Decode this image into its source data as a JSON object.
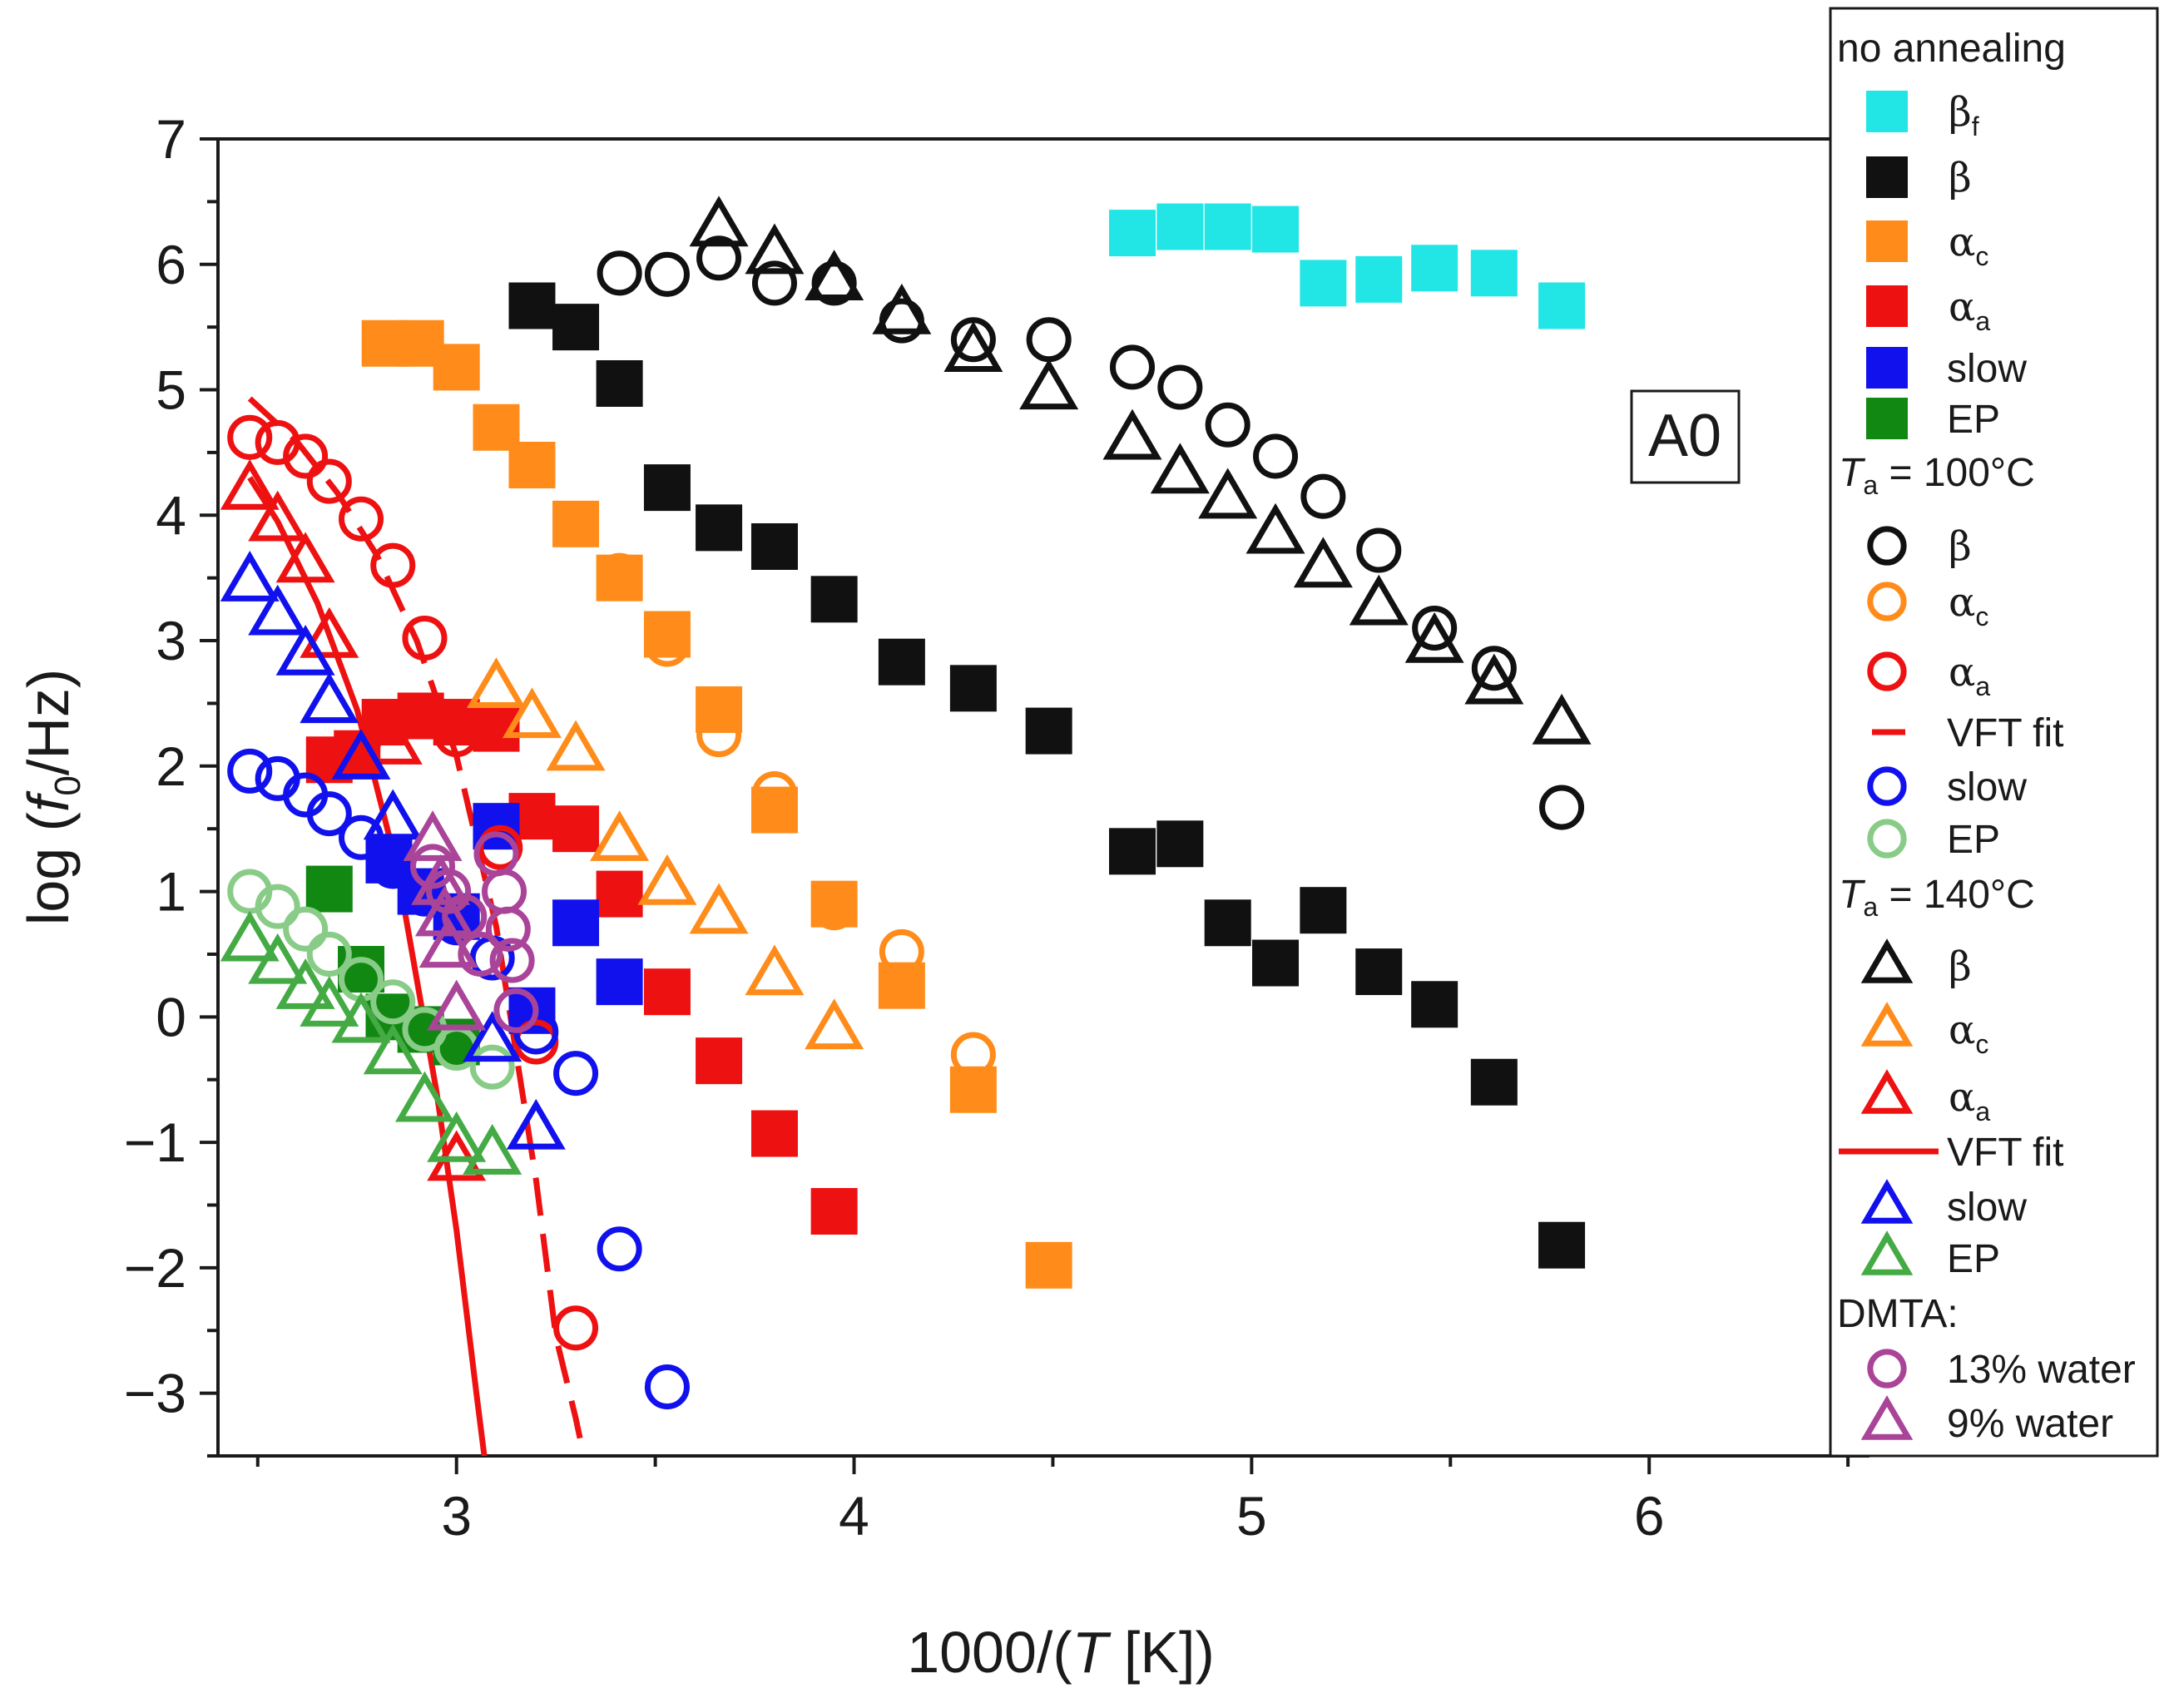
{
  "chart_data": {
    "type": "scatter",
    "title": "",
    "xlabel": {
      "prefix": "1000/(",
      "var": "T",
      "suffix": " [K])"
    },
    "ylabel": {
      "prefix": "log (",
      "var": "f",
      "sub": "0",
      "suffix": "/Hz)"
    },
    "xlim": [
      2.4,
      6.55
    ],
    "ylim": [
      -3.5,
      7
    ],
    "x_ticks": [
      "3",
      "4",
      "5",
      "6"
    ],
    "x_tick_values": [
      3,
      4,
      5,
      6
    ],
    "y_ticks": [
      "7",
      "6",
      "5",
      "4",
      "3",
      "2",
      "1",
      "0",
      "−1",
      "−2",
      "−3"
    ],
    "y_tick_values": [
      7,
      6,
      5,
      4,
      3,
      2,
      1,
      0,
      -1,
      -2,
      -3
    ],
    "annotation": "A0",
    "colors": {
      "cyan": "#22e6e6",
      "black": "#111111",
      "orange": "#ff8c1a",
      "red": "#ee1111",
      "blue": "#1111ee",
      "green": "#118811",
      "lightgreen": "#88cc88",
      "midgreen": "#44aa44",
      "purple": "#aa4499"
    },
    "legend": {
      "group1": "no annealing",
      "group2": {
        "var": "T",
        "sub": "a",
        "text": " = 100°C"
      },
      "group3": {
        "var": "T",
        "sub": "a",
        "text": " = 140°C"
      },
      "group4": "DMTA:",
      "labels": {
        "beta_f": {
          "main": "β",
          "sub": "f"
        },
        "beta": {
          "main": "β",
          "sub": ""
        },
        "alpha_c": {
          "main": "α",
          "sub": "c"
        },
        "alpha_a": {
          "main": "α",
          "sub": "a"
        },
        "slow": {
          "main": "slow",
          "sub": ""
        },
        "ep": {
          "main": "EP",
          "sub": ""
        },
        "vft": {
          "main": "VFT fit",
          "sub": ""
        },
        "water13": {
          "main": "13% water",
          "sub": ""
        },
        "water9": {
          "main": "9% water",
          "sub": ""
        }
      }
    },
    "series": [
      {
        "name": "no annealing βf",
        "marker": "square",
        "color": "#22e6e6",
        "x": [
          4.7,
          4.82,
          4.94,
          5.06,
          5.18,
          5.32,
          5.46,
          5.61,
          5.78
        ],
        "y": [
          6.25,
          6.3,
          6.3,
          6.28,
          5.85,
          5.88,
          5.97,
          5.93,
          5.67
        ]
      },
      {
        "name": "no annealing β",
        "marker": "square",
        "color": "#111111",
        "x": [
          3.19,
          3.3,
          3.41,
          3.53,
          3.66,
          3.8,
          3.95,
          4.12,
          4.3,
          4.49,
          4.7,
          4.82,
          4.94,
          5.06,
          5.18,
          5.32,
          5.46,
          5.61,
          5.78
        ],
        "y": [
          5.67,
          5.5,
          5.05,
          4.22,
          3.9,
          3.75,
          3.33,
          2.83,
          2.62,
          2.28,
          1.32,
          1.38,
          0.75,
          0.43,
          0.85,
          0.36,
          0.1,
          -0.52,
          -1.82
        ]
      },
      {
        "name": "no annealing αc",
        "marker": "square",
        "color": "#ff8c1a",
        "x": [
          2.82,
          2.91,
          3.0,
          3.1,
          3.19,
          3.3,
          3.41,
          3.53,
          3.66,
          3.8,
          3.95,
          4.12,
          4.3,
          4.49
        ],
        "y": [
          5.37,
          5.37,
          5.18,
          4.7,
          4.4,
          3.93,
          3.5,
          3.05,
          2.45,
          1.65,
          0.9,
          0.25,
          -0.58,
          -1.98
        ]
      },
      {
        "name": "no annealing αa",
        "marker": "square",
        "color": "#ee1111",
        "x": [
          2.68,
          2.75,
          2.82,
          2.91,
          3.0,
          3.1,
          3.19,
          3.3,
          3.41,
          3.53,
          3.66,
          3.8,
          3.95
        ],
        "y": [
          2.05,
          2.1,
          2.35,
          2.4,
          2.35,
          2.3,
          1.6,
          1.5,
          0.98,
          0.2,
          -0.35,
          -0.93,
          -1.55
        ]
      },
      {
        "name": "no annealing slow",
        "marker": "square",
        "color": "#1111ee",
        "x": [
          2.83,
          2.91,
          3.0,
          3.1,
          3.19,
          3.3,
          3.41
        ],
        "y": [
          1.25,
          1.0,
          0.8,
          1.52,
          0.05,
          0.75,
          0.28
        ]
      },
      {
        "name": "no annealing EP",
        "marker": "square",
        "color": "#118811",
        "x": [
          2.68,
          2.76,
          2.83,
          2.91,
          3.0
        ],
        "y": [
          1.02,
          0.38,
          0.0,
          -0.1,
          -0.2
        ]
      },
      {
        "name": "Ta=100 β",
        "marker": "circle",
        "color": "#111111",
        "x": [
          3.41,
          3.53,
          3.66,
          3.8,
          3.95,
          4.12,
          4.3,
          4.49,
          4.7,
          4.82,
          4.94,
          5.06,
          5.18,
          5.32,
          5.46,
          5.61,
          5.78
        ],
        "y": [
          5.93,
          5.92,
          6.05,
          5.85,
          5.85,
          5.55,
          5.4,
          5.4,
          5.18,
          5.02,
          4.72,
          4.47,
          4.15,
          3.72,
          3.1,
          2.78,
          1.67
        ]
      },
      {
        "name": "Ta=100 αc",
        "marker": "circle",
        "color": "#ff8c1a",
        "x": [
          3.41,
          3.53,
          3.66,
          3.8,
          3.95,
          4.12,
          4.3
        ],
        "y": [
          3.52,
          2.97,
          2.25,
          1.78,
          0.87,
          0.52,
          -0.3
        ]
      },
      {
        "name": "Ta=100 αa",
        "marker": "circle",
        "color": "#ee1111",
        "x": [
          2.48,
          2.55,
          2.62,
          2.68,
          2.76,
          2.84,
          2.92,
          3.0,
          3.11,
          3.2,
          3.3
        ],
        "y": [
          4.62,
          4.58,
          4.47,
          4.27,
          3.97,
          3.6,
          3.02,
          2.25,
          1.35,
          -0.2,
          -2.48
        ]
      },
      {
        "name": "Ta=100 slow",
        "marker": "circle",
        "color": "#1111ee",
        "x": [
          2.48,
          2.55,
          2.62,
          2.68,
          2.76,
          2.84,
          2.92,
          3.0,
          3.09,
          3.2,
          3.3,
          3.41,
          3.53
        ],
        "y": [
          1.96,
          1.9,
          1.77,
          1.62,
          1.43,
          1.2,
          0.98,
          0.75,
          0.47,
          -0.12,
          -0.45,
          -1.85,
          -2.95
        ]
      },
      {
        "name": "Ta=100 EP",
        "marker": "circle",
        "color": "#88cc88",
        "x": [
          2.48,
          2.55,
          2.62,
          2.68,
          2.76,
          2.84,
          2.92,
          3.0,
          3.09
        ],
        "y": [
          1.0,
          0.88,
          0.7,
          0.5,
          0.3,
          0.12,
          -0.1,
          -0.25,
          -0.4
        ]
      },
      {
        "name": "Ta=140 β",
        "marker": "triangle",
        "color": "#111111",
        "x": [
          3.66,
          3.8,
          3.95,
          4.12,
          4.3,
          4.49,
          4.7,
          4.82,
          4.94,
          5.06,
          5.18,
          5.32,
          5.46,
          5.61,
          5.78
        ],
        "y": [
          6.3,
          6.08,
          5.87,
          5.6,
          5.3,
          5.0,
          4.6,
          4.33,
          4.13,
          3.85,
          3.58,
          3.28,
          2.98,
          2.65,
          2.33
        ]
      },
      {
        "name": "Ta=140 αc",
        "marker": "triangle",
        "color": "#ff8c1a",
        "x": [
          3.1,
          3.19,
          3.3,
          3.41,
          3.53,
          3.66,
          3.8,
          3.95
        ],
        "y": [
          2.62,
          2.38,
          2.12,
          1.4,
          1.05,
          0.82,
          0.33,
          -0.1
        ]
      },
      {
        "name": "Ta=140 αa",
        "marker": "triangle",
        "color": "#ee1111",
        "x": [
          2.48,
          2.55,
          2.62,
          2.68,
          2.84,
          3.0
        ],
        "y": [
          4.2,
          3.95,
          3.62,
          3.02,
          2.17,
          -1.15
        ]
      },
      {
        "name": "Ta=140 slow",
        "marker": "triangle",
        "color": "#1111ee",
        "x": [
          2.48,
          2.55,
          2.62,
          2.68,
          2.76,
          2.84,
          3.09,
          3.2
        ],
        "y": [
          3.47,
          3.2,
          2.88,
          2.5,
          2.05,
          1.57,
          -0.2,
          -0.9
        ]
      },
      {
        "name": "Ta=140 EP",
        "marker": "triangle",
        "color": "#44aa44",
        "x": [
          2.48,
          2.55,
          2.62,
          2.68,
          2.76,
          2.84,
          2.92,
          3.0,
          3.09
        ],
        "y": [
          0.6,
          0.42,
          0.22,
          0.08,
          -0.05,
          -0.3,
          -0.68,
          -1.0,
          -1.1
        ]
      },
      {
        "name": "DMTA 13% water",
        "marker": "circle",
        "color": "#aa4499",
        "x": [
          2.94,
          2.98,
          3.02,
          3.06,
          3.1,
          3.12,
          3.13,
          3.14,
          3.15
        ],
        "y": [
          1.2,
          1.0,
          0.8,
          0.5,
          1.3,
          1.0,
          0.7,
          0.45,
          0.05
        ]
      },
      {
        "name": "DMTA 9% water",
        "marker": "triangle",
        "color": "#aa4499",
        "x": [
          2.94,
          2.96,
          2.97,
          2.98,
          3.0
        ],
        "y": [
          1.4,
          1.05,
          0.8,
          0.55,
          0.05
        ]
      }
    ],
    "fits": [
      {
        "name": "VFT fit (Ta=100 αa)",
        "style": "dashed",
        "color": "#ee1111",
        "x": [
          2.48,
          2.6,
          2.7,
          2.8,
          2.9,
          3.0,
          3.1,
          3.2,
          3.25,
          3.3,
          3.32
        ],
        "y": [
          4.93,
          4.58,
          4.18,
          3.68,
          3.0,
          2.08,
          0.72,
          -1.3,
          -2.55,
          -3.2,
          -3.5
        ]
      },
      {
        "name": "VFT fit (Ta=140 αa)",
        "style": "solid",
        "color": "#ee1111",
        "x": [
          2.48,
          2.55,
          2.65,
          2.75,
          2.85,
          2.95,
          3.0,
          3.05,
          3.07
        ],
        "y": [
          4.3,
          3.95,
          3.3,
          2.45,
          1.2,
          -0.6,
          -1.7,
          -3.0,
          -3.5
        ]
      }
    ]
  }
}
